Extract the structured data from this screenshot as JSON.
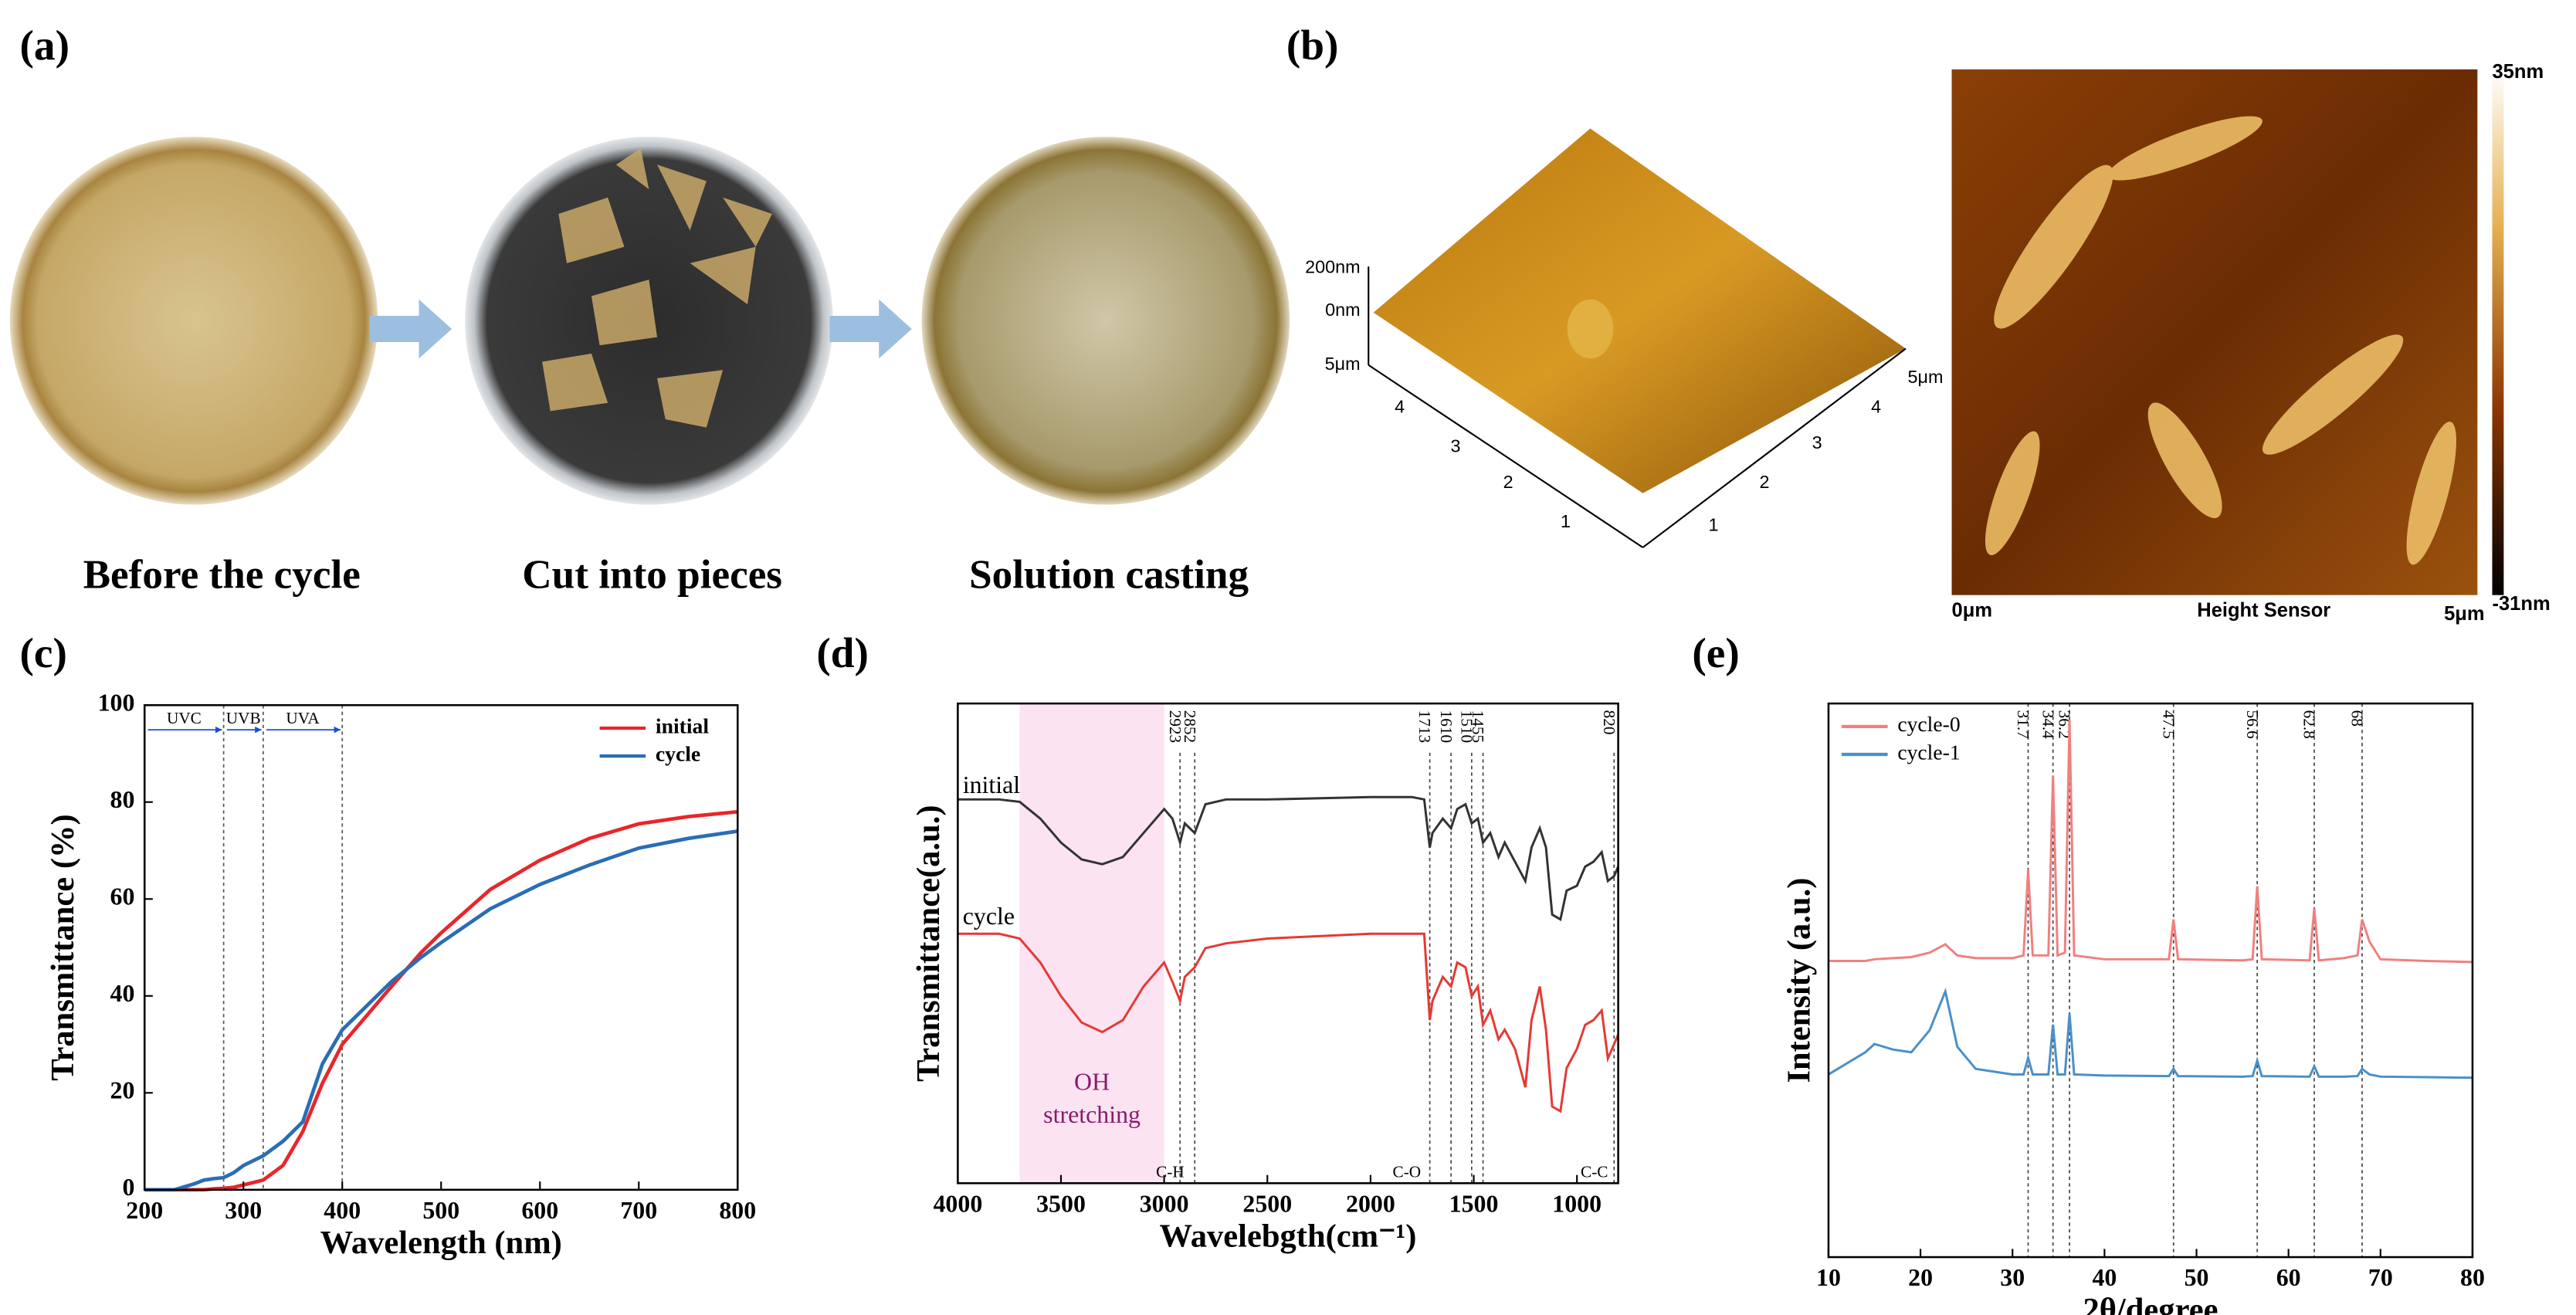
{
  "figure": {
    "panel_labels": [
      "(a)",
      "(b)",
      "(c)",
      "(d)",
      "(e)"
    ],
    "a": {
      "captions": [
        "Before the cycle",
        "Cut into pieces",
        "Solution casting"
      ]
    },
    "b": {
      "z_labels": [
        "200nm",
        "0nm"
      ],
      "axis_end": "5μm",
      "axis_ticks": [
        1,
        2,
        3,
        4
      ],
      "map_left": "0μm",
      "map_title": "Height Sensor",
      "map_right": "5μm",
      "scale_max": "35nm",
      "scale_min": "-31nm"
    }
  },
  "chart_data": [
    {
      "type": "line",
      "xlabel": "Wavelength (nm)",
      "ylabel": "Transmittance (%)",
      "xlim": [
        200,
        800
      ],
      "ylim": [
        0,
        100
      ],
      "xticks": [
        200,
        300,
        400,
        500,
        600,
        700,
        800
      ],
      "yticks": [
        0,
        20,
        40,
        60,
        80,
        100
      ],
      "uv_bands": [
        {
          "label": "UVC",
          "range": [
            200,
            280
          ]
        },
        {
          "label": "UVB",
          "range": [
            280,
            320
          ]
        },
        {
          "label": "UVA",
          "range": [
            320,
            400
          ]
        }
      ],
      "legend": "upper right",
      "x": [
        200,
        230,
        250,
        260,
        270,
        280,
        290,
        300,
        320,
        340,
        360,
        370,
        380,
        400,
        450,
        480,
        500,
        550,
        600,
        650,
        700,
        750,
        800
      ],
      "series": [
        {
          "name": "initial",
          "color": "#e8262b",
          "values": [
            0,
            0,
            0,
            0,
            0.2,
            0.3,
            0.5,
            1,
            2,
            5,
            12,
            17,
            22,
            30,
            42,
            49,
            53,
            62,
            68,
            72.5,
            75.5,
            77,
            78
          ]
        },
        {
          "name": "cycle",
          "color": "#2a6db5",
          "values": [
            0,
            0,
            1.2,
            2,
            2.3,
            2.5,
            3.5,
            5,
            7,
            10,
            14,
            20,
            26,
            33,
            43,
            48,
            51,
            58,
            63,
            67,
            70.5,
            72.5,
            74
          ]
        }
      ]
    },
    {
      "type": "line",
      "xlabel": "Wavelebgth(cm⁻¹)",
      "ylabel": "Transmittance(a.u.)",
      "xlim": [
        4000,
        800
      ],
      "ylim": [
        0,
        10
      ],
      "xticks": [
        4000,
        3500,
        3000,
        2500,
        2000,
        1500,
        1000
      ],
      "band": [
        3700,
        3000
      ],
      "annotations": [
        "OH stretching",
        "C-H",
        "C-O",
        "C-C"
      ],
      "vlines": [
        2923,
        2852,
        1713,
        1610,
        1510,
        1455,
        820
      ],
      "x": [
        4000,
        3800,
        3700,
        3600,
        3500,
        3400,
        3300,
        3200,
        3100,
        3000,
        2960,
        2923,
        2900,
        2852,
        2800,
        2700,
        2500,
        2000,
        1800,
        1740,
        1713,
        1700,
        1650,
        1610,
        1580,
        1540,
        1510,
        1480,
        1455,
        1420,
        1380,
        1350,
        1300,
        1250,
        1220,
        1180,
        1150,
        1120,
        1080,
        1050,
        1000,
        960,
        920,
        880,
        850,
        820,
        800
      ],
      "series": [
        {
          "name": "initial",
          "color": "#333333",
          "values": [
            8.0,
            8.0,
            7.95,
            7.6,
            7.1,
            6.75,
            6.65,
            6.8,
            7.3,
            7.8,
            7.6,
            7.1,
            7.5,
            7.3,
            7.9,
            8.0,
            8.0,
            8.05,
            8.05,
            8.0,
            7.0,
            7.3,
            7.6,
            7.4,
            7.8,
            7.9,
            7.5,
            7.6,
            7.1,
            7.3,
            6.8,
            7.1,
            6.7,
            6.3,
            7.0,
            7.4,
            7.0,
            5.6,
            5.5,
            6.1,
            6.2,
            6.6,
            6.7,
            6.9,
            6.3,
            6.4,
            6.6
          ]
        },
        {
          "name": "cycle",
          "color": "#e53935",
          "values": [
            5.2,
            5.2,
            5.1,
            4.6,
            3.9,
            3.35,
            3.15,
            3.4,
            4.1,
            4.6,
            4.2,
            3.8,
            4.3,
            4.5,
            4.9,
            5.0,
            5.1,
            5.2,
            5.2,
            5.2,
            3.4,
            3.8,
            4.3,
            4.1,
            4.6,
            4.5,
            3.9,
            4.1,
            3.3,
            3.6,
            3.0,
            3.2,
            2.8,
            2.0,
            3.4,
            4.1,
            3.2,
            1.6,
            1.5,
            2.4,
            2.8,
            3.3,
            3.4,
            3.6,
            2.6,
            2.9,
            3.1
          ]
        }
      ]
    },
    {
      "type": "line",
      "xlabel": "2θ/degree",
      "ylabel": "Intensity (a.u.)",
      "xlim": [
        10,
        80
      ],
      "ylim": [
        0,
        10
      ],
      "xticks": [
        10,
        20,
        30,
        40,
        50,
        60,
        70,
        80
      ],
      "vlines": [
        31.7,
        34.4,
        36.2,
        47.5,
        56.6,
        62.8,
        68
      ],
      "legend": "upper left",
      "x": [
        10,
        14,
        15,
        17,
        19,
        21,
        22.7,
        24,
        26,
        30,
        31.2,
        31.7,
        32.2,
        33.9,
        34.4,
        34.9,
        35.7,
        36.2,
        36.7,
        40,
        47,
        47.5,
        48,
        55,
        56.1,
        56.6,
        57.1,
        62.3,
        62.8,
        63.3,
        66,
        67.5,
        68,
        68.8,
        70,
        75,
        80
      ],
      "series": [
        {
          "name": "cycle-0",
          "color": "#f08080",
          "values": [
            5.35,
            5.35,
            5.38,
            5.4,
            5.42,
            5.5,
            5.65,
            5.45,
            5.4,
            5.4,
            5.45,
            7.0,
            5.45,
            5.45,
            8.7,
            5.45,
            5.5,
            9.7,
            5.45,
            5.38,
            5.38,
            6.1,
            5.38,
            5.36,
            5.38,
            6.7,
            5.38,
            5.36,
            6.3,
            5.36,
            5.4,
            5.45,
            6.1,
            5.7,
            5.38,
            5.35,
            5.33
          ]
        },
        {
          "name": "cycle-1",
          "color": "#4a90c8",
          "values": [
            3.3,
            3.7,
            3.85,
            3.75,
            3.7,
            4.1,
            4.8,
            3.8,
            3.4,
            3.3,
            3.3,
            3.6,
            3.3,
            3.3,
            4.2,
            3.3,
            3.3,
            4.4,
            3.3,
            3.28,
            3.27,
            3.4,
            3.27,
            3.26,
            3.27,
            3.55,
            3.27,
            3.26,
            3.45,
            3.26,
            3.26,
            3.27,
            3.4,
            3.3,
            3.26,
            3.25,
            3.24
          ]
        }
      ]
    }
  ]
}
